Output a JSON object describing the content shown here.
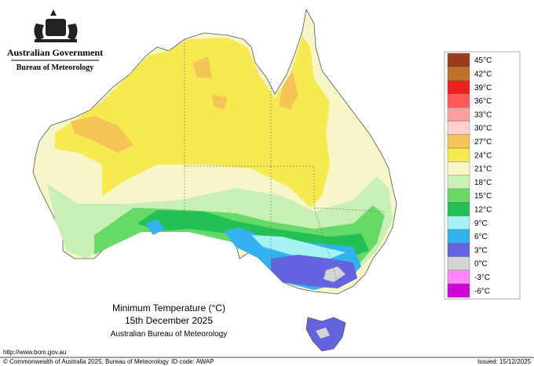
{
  "header": {
    "government": "Australian Government",
    "agency": "Bureau of Meteorology"
  },
  "map_title": {
    "line1": "Minimum Temperature (°C)",
    "line2": "15th December 2025",
    "line3": "Australian Bureau of Meteorology"
  },
  "legend": [
    {
      "label": "45°C",
      "color": "#9a3c1c"
    },
    {
      "label": "42°C",
      "color": "#c0702c"
    },
    {
      "label": "39°C",
      "color": "#f02020"
    },
    {
      "label": "36°C",
      "color": "#ff5a5a"
    },
    {
      "label": "33°C",
      "color": "#ffa0a0"
    },
    {
      "label": "30°C",
      "color": "#ffd0d0"
    },
    {
      "label": "27°C",
      "color": "#f5c456"
    },
    {
      "label": "24°C",
      "color": "#f6ea50"
    },
    {
      "label": "21°C",
      "color": "#f7f6c8"
    },
    {
      "label": "18°C",
      "color": "#c8f0b4"
    },
    {
      "label": "15°C",
      "color": "#66da66"
    },
    {
      "label": "12°C",
      "color": "#22c055"
    },
    {
      "label": "9°C",
      "color": "#a6f2f2"
    },
    {
      "label": "6°C",
      "color": "#34b2f0"
    },
    {
      "label": "3°C",
      "color": "#6464e0"
    },
    {
      "label": "0°C",
      "color": "#d4d4d4"
    },
    {
      "label": "-3°C",
      "color": "#ff88ff"
    },
    {
      "label": "-6°C",
      "color": "#d000d8"
    }
  ],
  "footer": {
    "url": "http://www.bom.gov.au",
    "copyright": "© Commonwealth of Australia 2025, Bureau of Meteorology",
    "id_code": "ID code: AWAP",
    "issued": "Issued: 15/12/2025"
  }
}
